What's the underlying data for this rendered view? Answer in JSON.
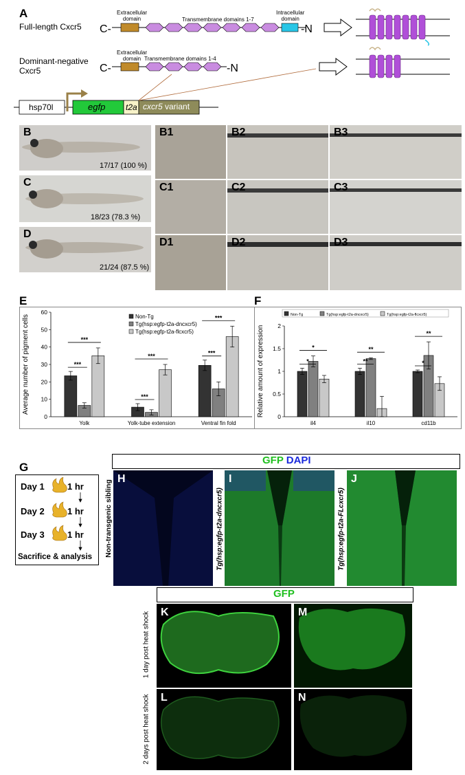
{
  "panelA": {
    "label": "A",
    "full_length": "Full-length Cxcr5",
    "dominant_negative": "Dominant-negative\nCxcr5",
    "c_term": "C-",
    "n_term": "-N",
    "extracellular": "Extracellular\ndomain",
    "tm17": "Transmembrane domains 1-7",
    "intracellular": "Intracellular\ndomain",
    "tm14": "Transmembrane domains 1-4",
    "construct": {
      "hsp": "hsp70l",
      "egfp": "egfp",
      "t2a": "t2a",
      "variant": "cxcr5 variant"
    }
  },
  "panelB": {
    "label": "B",
    "count": "17/17 (100 %)"
  },
  "panelC": {
    "label": "C",
    "count": "18/23 (78.3 %)"
  },
  "panelD": {
    "label": "D",
    "count": "21/24 (87.5 %)"
  },
  "zoom_labels": [
    "B1",
    "B2",
    "B3",
    "C1",
    "C2",
    "C3",
    "D1",
    "D2",
    "D3"
  ],
  "panelE": {
    "label": "E"
  },
  "panelF": {
    "label": "F"
  },
  "chart_data": [
    {
      "type": "bar",
      "ylabel": "Average number of pigment cells",
      "ylim": [
        0,
        60
      ],
      "yticks": [
        0,
        10,
        20,
        30,
        40,
        50,
        60
      ],
      "categories": [
        "Yolk",
        "Yolk-tube extension",
        "Ventral fin fold"
      ],
      "legend_position": "top-center",
      "series": [
        {
          "name": "Non-Tg",
          "values": [
            23.5,
            5.5,
            29.5
          ],
          "errors": [
            2.5,
            2,
            3
          ],
          "color": "#333333"
        },
        {
          "name": "Tg(hsp:egfp-t2a-dncxcr5)",
          "values": [
            6.5,
            2.5,
            16
          ],
          "errors": [
            1.5,
            1.5,
            4
          ],
          "color": "#808080"
        },
        {
          "name": "Tg(hsp:egfp-t2a-flcxcr5)",
          "values": [
            35,
            27,
            46
          ],
          "errors": [
            4.5,
            3,
            6
          ],
          "color": "#c8c8c8"
        }
      ],
      "significance": [
        {
          "category": "Yolk",
          "pair": "Non-Tg vs dn",
          "stars": "***"
        },
        {
          "category": "Yolk",
          "pair": "Non-Tg vs fl",
          "stars": "***"
        },
        {
          "category": "Yolk-tube extension",
          "pair": "Non-Tg vs dn",
          "stars": "***"
        },
        {
          "category": "Yolk-tube extension",
          "pair": "Non-Tg vs fl",
          "stars": "***"
        },
        {
          "category": "Ventral fin fold",
          "pair": "Non-Tg vs dn",
          "stars": "***"
        },
        {
          "category": "Ventral fin fold",
          "pair": "Non-Tg vs fl",
          "stars": "***"
        }
      ]
    },
    {
      "type": "bar",
      "ylabel": "Relative amount of expression",
      "ylim": [
        0,
        2
      ],
      "yticks": [
        0,
        0.5,
        1,
        1.5,
        2
      ],
      "categories": [
        "il4",
        "il10",
        "cd11b"
      ],
      "legend_position": "top",
      "series": [
        {
          "name": "Non-Tg",
          "values": [
            1.0,
            1.0,
            1.0
          ],
          "errors": [
            0.07,
            0.07,
            0.03
          ],
          "color": "#333333"
        },
        {
          "name": "Tg(hsp:egfp-t2a-dncxcr5)",
          "values": [
            1.22,
            1.28,
            1.35
          ],
          "errors": [
            0.12,
            0.02,
            0.3
          ],
          "color": "#808080"
        },
        {
          "name": "Tg(hsp:egfp-t2a-flcxcr5)",
          "values": [
            0.83,
            0.18,
            0.73
          ],
          "errors": [
            0.08,
            0.27,
            0.15
          ],
          "color": "#c8c8c8"
        }
      ],
      "significance": [
        {
          "category": "il4",
          "pair": "Non-Tg vs dn",
          "stars": "*"
        },
        {
          "category": "il4",
          "pair": "Non-Tg vs fl",
          "stars": "*"
        },
        {
          "category": "il10",
          "pair": "Non-Tg vs dn",
          "stars": "**"
        },
        {
          "category": "il10",
          "pair": "Non-Tg vs fl",
          "stars": "**"
        },
        {
          "category": "cd11b",
          "pair": "Non-Tg vs dn",
          "stars": "*"
        },
        {
          "category": "cd11b",
          "pair": "Non-Tg vs fl",
          "stars": "**"
        }
      ]
    }
  ],
  "panelG": {
    "label": "G",
    "steps": [
      {
        "day": "Day 1",
        "dur": "1 hr"
      },
      {
        "day": "Day 2",
        "dur": "1 hr"
      },
      {
        "day": "Day 3",
        "dur": "1 hr"
      }
    ],
    "final": "Sacrifice & analysis"
  },
  "gfp_dapi": {
    "gfp": "GFP",
    "dapi": "DAPI"
  },
  "panelH": {
    "label": "H",
    "side": "Non-transgenic sibling"
  },
  "panelI": {
    "label": "I",
    "side": "Tg(hsp:egfp-t2a-dncxcr5)"
  },
  "panelJ": {
    "label": "J",
    "side": "Tg(hsp:egfp-t2a-FLcxcr5)"
  },
  "gfp_bottom": "GFP",
  "panelK": {
    "label": "K"
  },
  "panelM": {
    "label": "M"
  },
  "panelL": {
    "label": "L"
  },
  "panelN": {
    "label": "N"
  },
  "row_labels": {
    "one_day": "1 day post heat shock",
    "two_days": "2 days post heat shock"
  },
  "colors": {
    "gfp": "#1fbf1f",
    "dapi": "#1a2adc",
    "extracellular": "#c08a2a",
    "tm": "#c98ce0",
    "intracellular": "#28c6e6",
    "egfp": "#22c93a",
    "t2a": "#f7f2c8",
    "variant": "#8e8b5a"
  }
}
